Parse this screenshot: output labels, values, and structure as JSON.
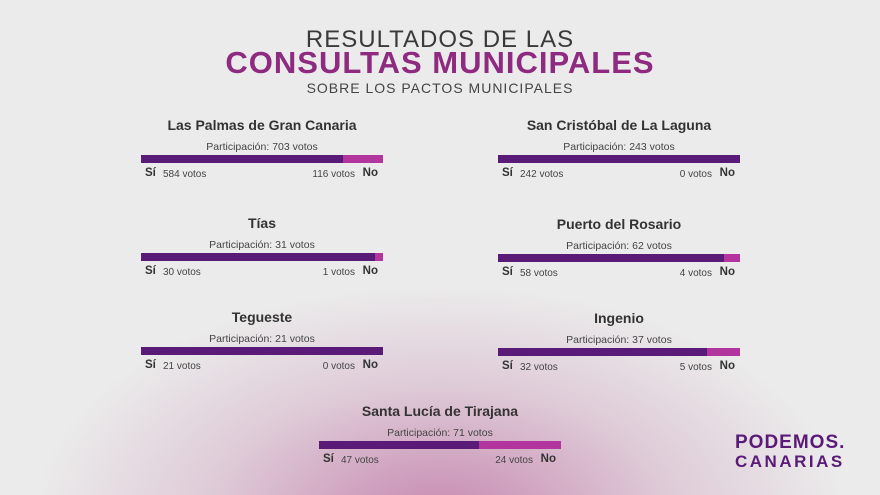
{
  "header": {
    "line1": "RESULTADOS DE LAS",
    "line2": "CONSULTAS MUNICIPALES",
    "line3": "SOBRE LOS PACTOS MUNICIPALES"
  },
  "colors": {
    "si": "#5a1a78",
    "no": "#b2349d",
    "title_accent": "#8e2a80",
    "background": "#ebebeb"
  },
  "chart_data": {
    "type": "bar",
    "orientation": "horizontal-stacked-percent",
    "title": "RESULTADOS DE LAS CONSULTAS MUNICIPALES SOBRE LOS PACTOS MUNICIPALES",
    "series": [
      {
        "name": "Sí"
      },
      {
        "name": "No"
      }
    ],
    "municipalities": [
      {
        "name": "Las Palmas de Gran Canaria",
        "participation": 703,
        "participation_label": "Participación: 703 votos",
        "si_label": "Sí",
        "si": 584,
        "si_text": "584 votos",
        "no": 116,
        "no_text": "116 votos",
        "no_label": "No"
      },
      {
        "name": "San Cristóbal de La Laguna",
        "participation": 243,
        "participation_label": "Participación: 243 votos",
        "si_label": "Sí",
        "si": 242,
        "si_text": "242 votos",
        "no": 0,
        "no_text": "0 votos",
        "no_label": "No"
      },
      {
        "name": "Tías",
        "participation": 31,
        "participation_label": "Participación: 31 votos",
        "si_label": "Sí",
        "si": 30,
        "si_text": "30 votos",
        "no": 1,
        "no_text": "1 votos",
        "no_label": "No"
      },
      {
        "name": "Puerto del Rosario",
        "participation": 62,
        "participation_label": "Participación: 62 votos",
        "si_label": "Sí",
        "si": 58,
        "si_text": "58 votos",
        "no": 4,
        "no_text": "4 votos",
        "no_label": "No"
      },
      {
        "name": "Tegueste",
        "participation": 21,
        "participation_label": "Participación: 21 votos",
        "si_label": "Sí",
        "si": 21,
        "si_text": "21 votos",
        "no": 0,
        "no_text": "0 votos",
        "no_label": "No"
      },
      {
        "name": "Ingenio",
        "participation": 37,
        "participation_label": "Participación: 37 votos",
        "si_label": "Sí",
        "si": 32,
        "si_text": "32 votos",
        "no": 5,
        "no_text": "5 votos",
        "no_label": "No"
      },
      {
        "name": "Santa Lucía de Tirajana",
        "participation": 71,
        "participation_label": "Participación: 71 votos",
        "si_label": "Sí",
        "si": 47,
        "si_text": "47 votos",
        "no": 24,
        "no_text": "24 votos",
        "no_label": "No"
      }
    ]
  },
  "logo": {
    "line1": "PODEMOS.",
    "line2": "CANARIAS"
  }
}
